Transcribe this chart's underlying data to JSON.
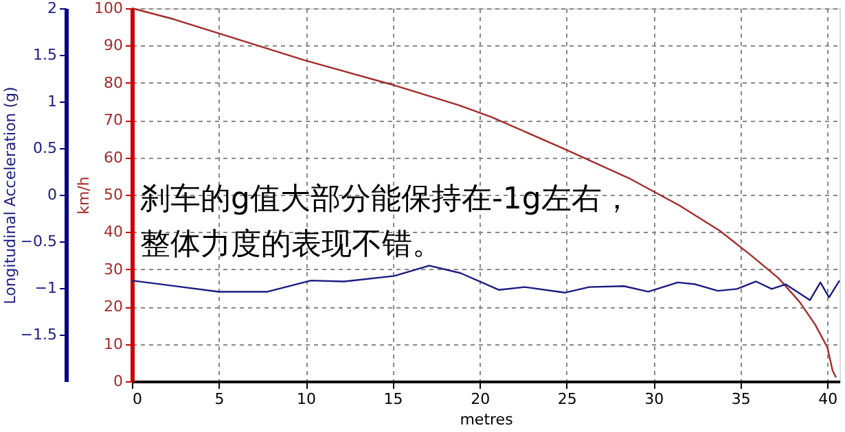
{
  "chart_data": {
    "type": "line",
    "xlabel": "metres",
    "ylabel": "km/h",
    "y2label": "Longitudinal Acceleration (g)",
    "annotations": [
      "刹车的g值大部分能保持在-1g左右，",
      "整体力度的表现不错。"
    ],
    "xlim": [
      0,
      40.7
    ],
    "xticks": [
      0,
      5,
      10,
      15,
      20,
      25,
      30,
      35,
      40
    ],
    "ylim": [
      0,
      100
    ],
    "yticks": [
      0,
      10,
      20,
      30,
      40,
      50,
      60,
      70,
      80,
      90,
      100
    ],
    "y2lim": [
      -2,
      2
    ],
    "y2ticks": [
      -1.5,
      -1,
      -0.5,
      0,
      0.5,
      1,
      1.5,
      2
    ],
    "grid": true,
    "legend": false,
    "line_style": "solid",
    "marker": "none",
    "series": [
      {
        "color": "#a52a2a",
        "axis": "y",
        "x": [
          0,
          2.3,
          4.9,
          9.9,
          14.9,
          18.8,
          20.7,
          25.0,
          28.6,
          31.5,
          33.8,
          35.6,
          37.2,
          38.4,
          39.3,
          40.0,
          40.3,
          40.5
        ],
        "values": [
          100,
          97.2,
          93.4,
          86.1,
          79.6,
          74.0,
          70.8,
          62.0,
          54.4,
          47.1,
          40.4,
          33.8,
          27.6,
          21.3,
          15.2,
          9.1,
          2.9,
          1
        ]
      },
      {
        "color": "#1a1a80",
        "axis": "y2",
        "x": [
          0,
          5.0,
          7.8,
          10.3,
          12.2,
          15.1,
          17.1,
          18.9,
          21.1,
          22.6,
          24.9,
          26.3,
          28.3,
          29.7,
          31.4,
          32.4,
          33.7,
          34.8,
          35.9,
          36.8,
          37.6,
          39.0,
          39.6,
          40.1,
          40.7
        ],
        "values": [
          -0.92,
          -1.04,
          -1.04,
          -0.92,
          -0.93,
          -0.87,
          -0.76,
          -0.84,
          -1.02,
          -0.99,
          -1.05,
          -0.99,
          -0.98,
          -1.04,
          -0.94,
          -0.96,
          -1.03,
          -1.01,
          -0.93,
          -1.01,
          -0.96,
          -1.13,
          -0.94,
          -1.1,
          -0.92
        ]
      }
    ]
  }
}
